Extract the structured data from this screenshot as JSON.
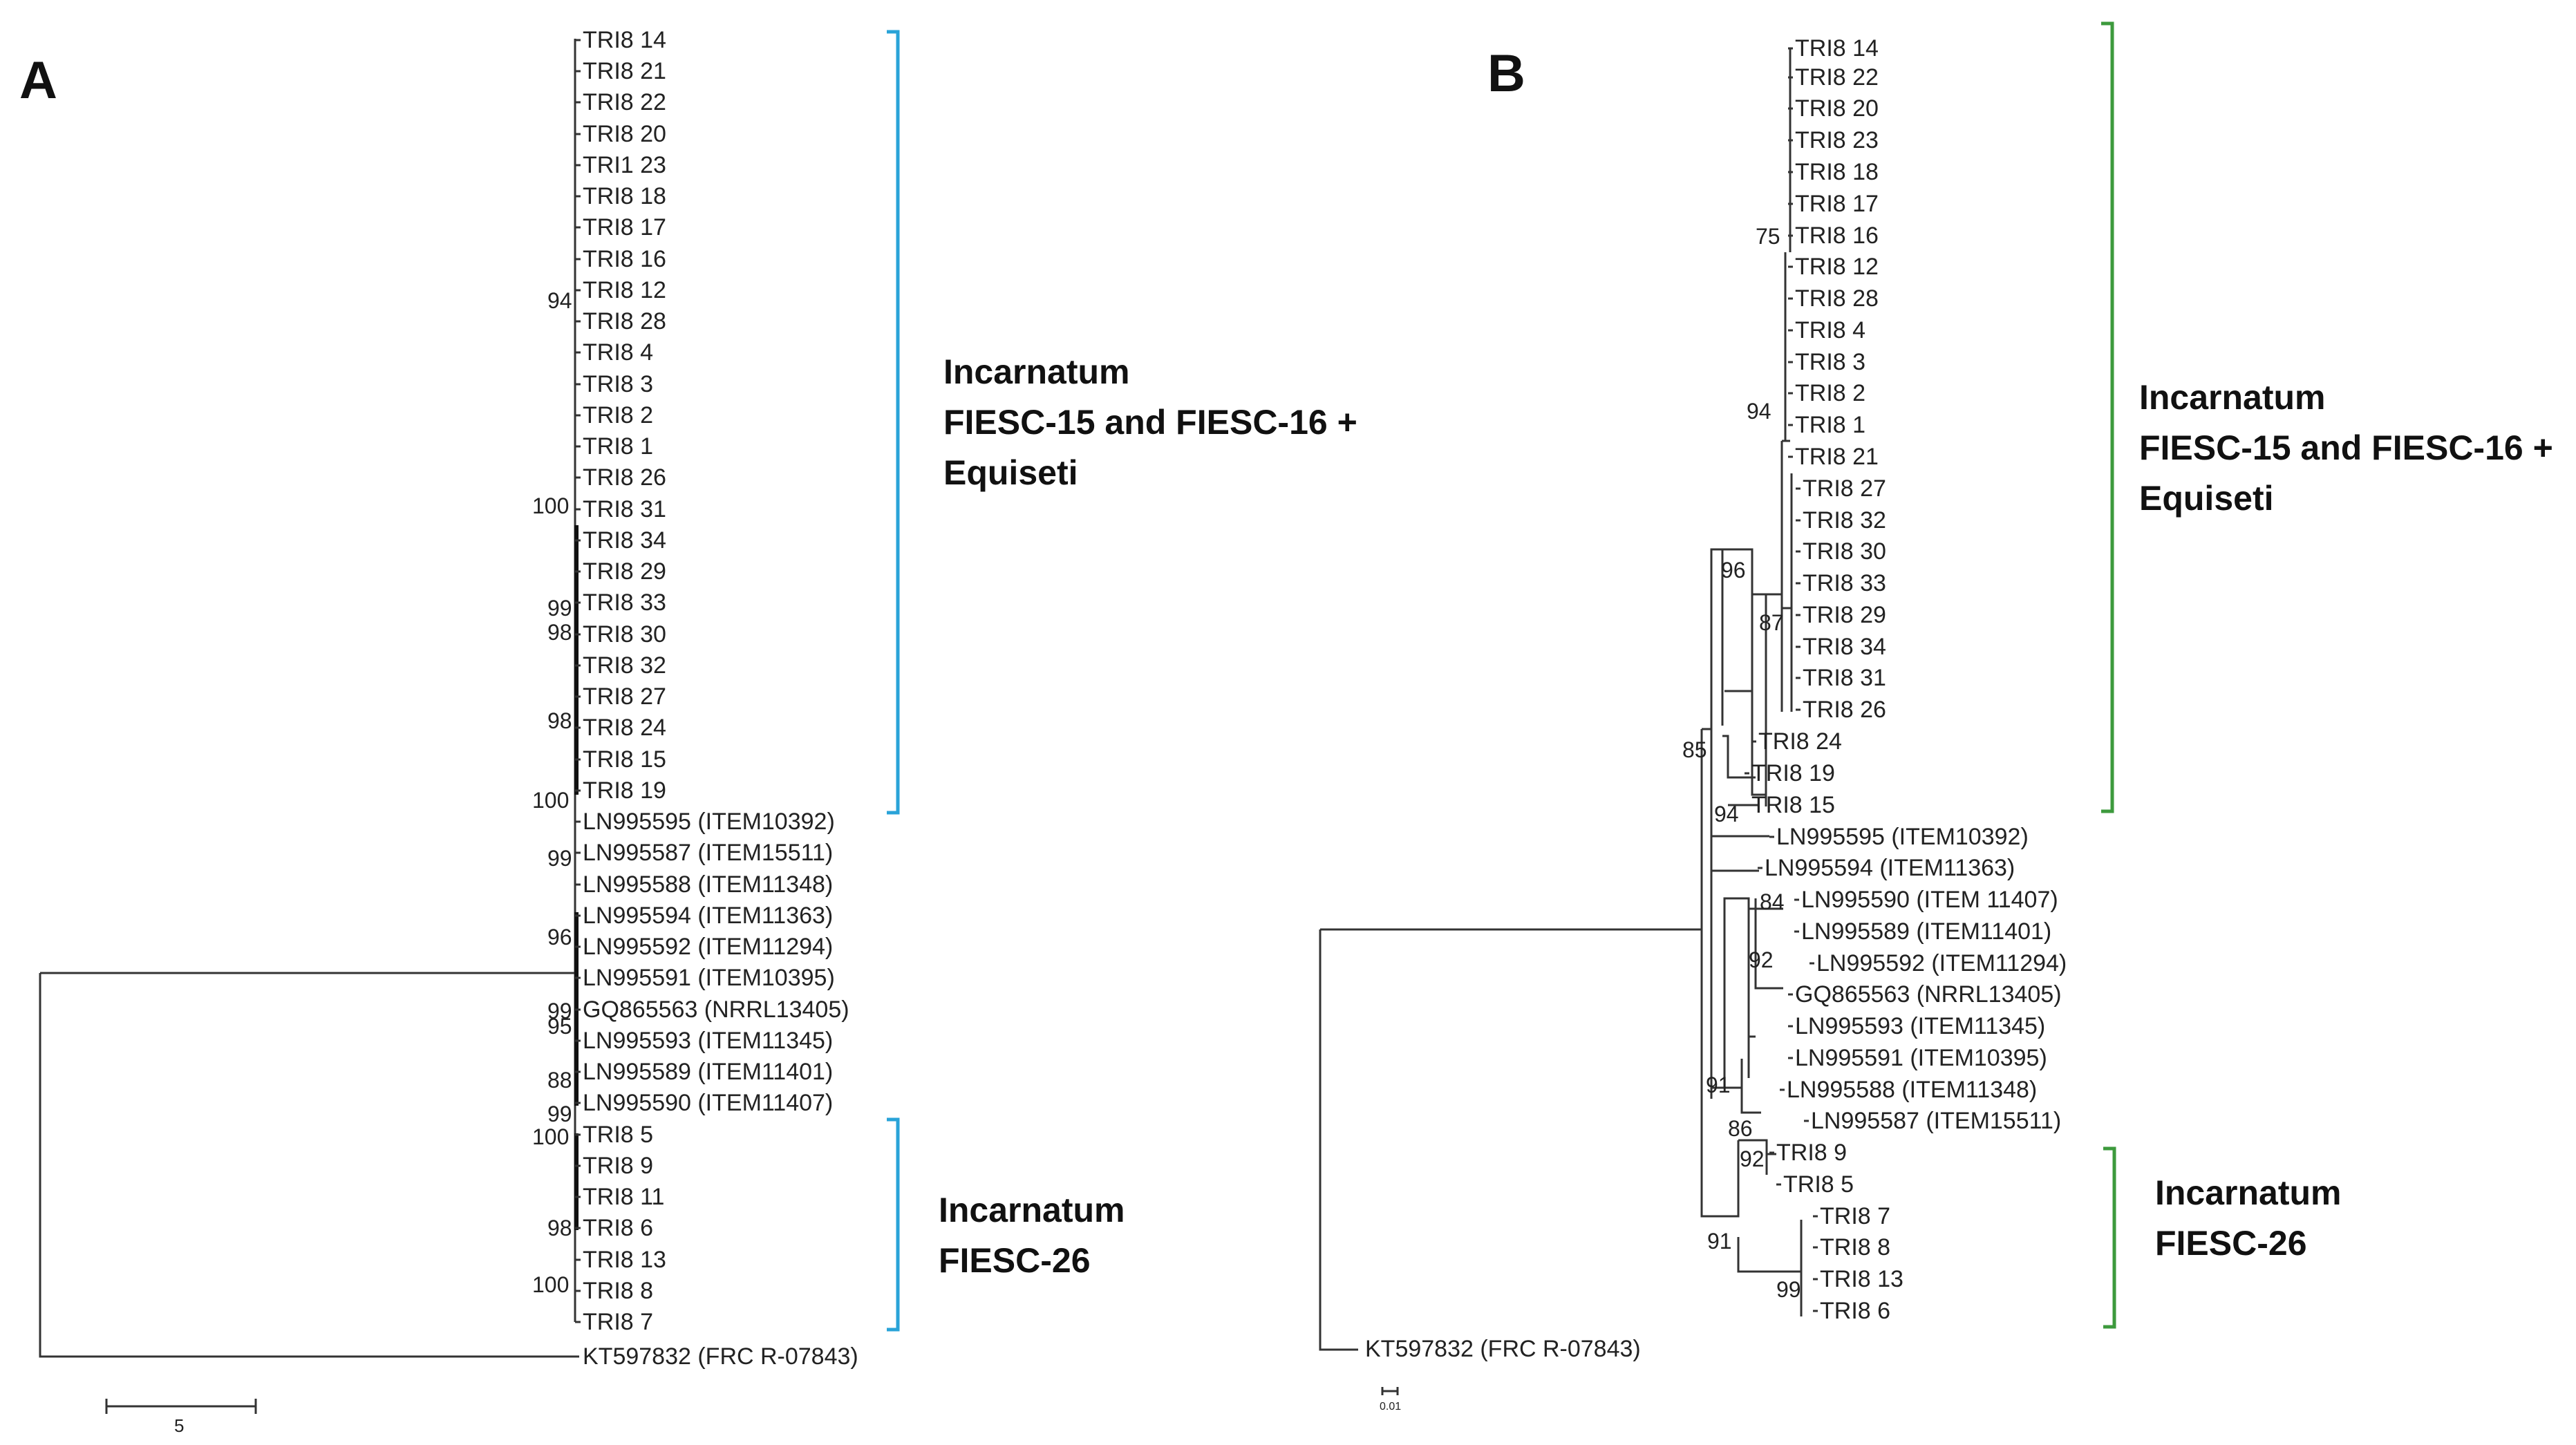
{
  "panels": {
    "A": {
      "label": "A",
      "taxa": [
        "TRI8 14",
        "TRI8 21",
        "TRI8 22",
        "TRI8 20",
        "TRI1 23",
        "TRI8 18",
        "TRI8 17",
        "TRI8 16",
        "TRI8 12",
        "TRI8 28",
        "TRI8 4",
        "TRI8 3",
        "TRI8 2",
        "TRI8 1",
        "TRI8 26",
        "TRI8 31",
        "TRI8 34",
        "TRI8 29",
        "TRI8 33",
        "TRI8 30",
        "TRI8 32",
        "TRI8 27",
        "TRI8 24",
        "TRI8 15",
        "TRI8 19",
        "LN995595 (ITEM10392)",
        "LN995587 (ITEM15511)",
        "LN995588 (ITEM11348)",
        "LN995594 (ITEM11363)",
        "LN995592 (ITEM11294)",
        "LN995591 (ITEM10395)",
        "GQ865563 (NRRL13405)",
        "LN995593 (ITEM11345)",
        "LN995589 (ITEM11401)",
        "LN995590 (ITEM11407)",
        "TRI8 5",
        "TRI8 9",
        "TRI8 11",
        "TRI8 6",
        "TRI8 13",
        "TRI8 8",
        "TRI8 7",
        "KT597832 (FRC R-07843)"
      ],
      "bootstrap": [
        "94",
        "100",
        "99",
        "98",
        "98",
        "100",
        "99",
        "96",
        "99",
        "95",
        "88",
        "99",
        "100",
        "98",
        "100"
      ],
      "clade1": [
        "Incarnatum",
        "FIESC-15 and FIESC-16 +",
        "Equiseti"
      ],
      "clade2": [
        "Incarnatum",
        "FIESC-26"
      ],
      "bracket1_color": "#29a3d8",
      "bracket2_color": "#29a3d8",
      "scale_label": "5"
    },
    "B": {
      "label": "B",
      "taxa": [
        "TRI8 14",
        "TRI8 22",
        "TRI8 20",
        "TRI8 23",
        "TRI8 18",
        "TRI8 17",
        "TRI8 16",
        "TRI8 12",
        "TRI8 28",
        "TRI8 4",
        "TRI8 3",
        "TRI8 2",
        "TRI8 1",
        "TRI8 21",
        "TRI8 27",
        "TRI8 32",
        "TRI8 30",
        "TRI8 33",
        "TRI8 29",
        "TRI8 34",
        "TRI8 31",
        "TRI8 26",
        "TRI8 24",
        "TRI8 19",
        "TRI8 15",
        "LN995595 (ITEM10392)",
        "LN995594 (ITEM11363)",
        "LN995590 (ITEM 11407)",
        "LN995589 (ITEM11401)",
        "LN995592 (ITEM11294)",
        "GQ865563 (NRRL13405)",
        "LN995593 (ITEM11345)",
        "LN995591 (ITEM10395)",
        "LN995588 (ITEM11348)",
        "LN995587 (ITEM15511)",
        "TRI8 9",
        "TRI8 5",
        "TRI8 7",
        "TRI8 8",
        "TRI8 13",
        "TRI8 6",
        "KT597832 (FRC R-07843)"
      ],
      "bootstrap": [
        "75",
        "94",
        "96",
        "87",
        "85",
        "94",
        "84",
        "92",
        "91",
        "86",
        "92",
        "91",
        "99"
      ],
      "clade1": [
        "Incarnatum",
        "FIESC-15 and FIESC-16 +",
        "Equiseti"
      ],
      "clade2": [
        "Incarnatum",
        "FIESC-26"
      ],
      "bracket1_color": "#3d9a3d",
      "bracket2_color": "#3d9a3d",
      "scale_label": "0.01"
    }
  }
}
